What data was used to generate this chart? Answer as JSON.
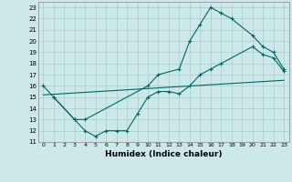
{
  "xlabel": "Humidex (Indice chaleur)",
  "bg_color": "#cce8e8",
  "line_color": "#006666",
  "grid_color": "#aacccc",
  "xlim": [
    -0.5,
    23.5
  ],
  "ylim": [
    11,
    23.5
  ],
  "yticks": [
    11,
    12,
    13,
    14,
    15,
    16,
    17,
    18,
    19,
    20,
    21,
    22,
    23
  ],
  "xticks": [
    0,
    1,
    2,
    3,
    4,
    5,
    6,
    7,
    8,
    9,
    10,
    11,
    12,
    13,
    14,
    15,
    16,
    17,
    18,
    19,
    20,
    21,
    22,
    23
  ],
  "line1_x": [
    0,
    1,
    3,
    4,
    10,
    11,
    13,
    14,
    15,
    16,
    17,
    18,
    20,
    21,
    22,
    23
  ],
  "line1_y": [
    16.0,
    15.0,
    13.0,
    13.0,
    16.0,
    17.0,
    17.5,
    20.0,
    21.5,
    23.0,
    22.5,
    22.0,
    20.5,
    19.5,
    19.0,
    17.5
  ],
  "line2_x": [
    1,
    3,
    4,
    5,
    6,
    7,
    8,
    9,
    10,
    11,
    12,
    13,
    14,
    15,
    16,
    17,
    20,
    21,
    22,
    23
  ],
  "line2_y": [
    15.0,
    13.0,
    12.0,
    11.5,
    12.0,
    12.0,
    12.0,
    13.5,
    15.0,
    15.5,
    15.5,
    15.3,
    16.0,
    17.0,
    17.5,
    18.0,
    19.5,
    18.8,
    18.5,
    17.3
  ],
  "line3_x": [
    0,
    23
  ],
  "line3_y": [
    15.2,
    16.5
  ]
}
